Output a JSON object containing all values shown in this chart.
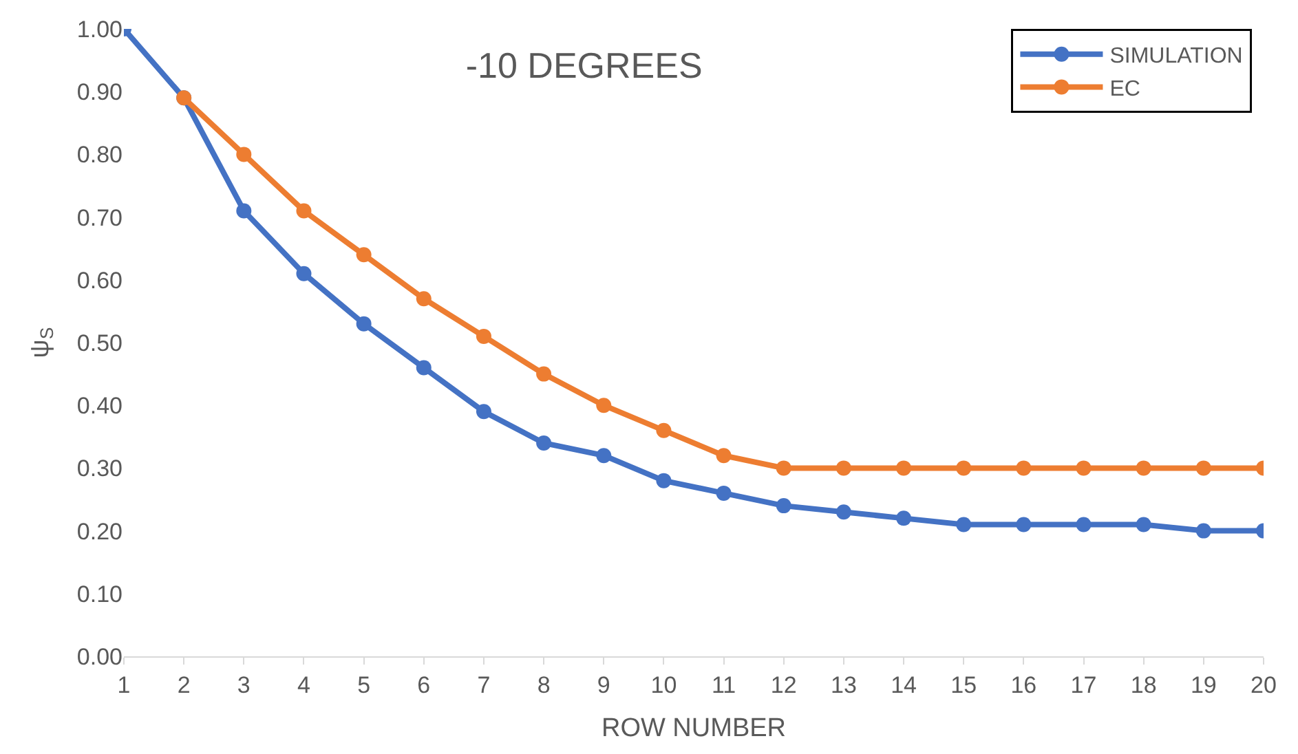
{
  "chart_data": {
    "type": "line",
    "title": "-10 DEGREES",
    "xlabel": "ROW NUMBER",
    "ylabel": "ψ$_{S}$",
    "x": [
      1,
      2,
      3,
      4,
      5,
      6,
      7,
      8,
      9,
      10,
      11,
      12,
      13,
      14,
      15,
      16,
      17,
      18,
      19,
      20
    ],
    "series": [
      {
        "name": "SIMULATION",
        "color": "#4472c4",
        "values": [
          1.0,
          0.89,
          0.71,
          0.61,
          0.53,
          0.46,
          0.39,
          0.34,
          0.32,
          0.28,
          0.26,
          0.24,
          0.23,
          0.22,
          0.21,
          0.21,
          0.21,
          0.21,
          0.2,
          0.2
        ]
      },
      {
        "name": "EC",
        "color": "#ed7d31",
        "values": [
          null,
          0.89,
          0.8,
          0.71,
          0.64,
          0.57,
          0.51,
          0.45,
          0.4,
          0.36,
          0.32,
          0.3,
          0.3,
          0.3,
          0.3,
          0.3,
          0.3,
          0.3,
          0.3,
          0.3
        ]
      }
    ],
    "xlim": [
      1,
      20
    ],
    "xticks": [
      1,
      2,
      3,
      4,
      5,
      6,
      7,
      8,
      9,
      10,
      11,
      12,
      13,
      14,
      15,
      16,
      17,
      18,
      19,
      20
    ],
    "ylim": [
      0,
      1
    ],
    "yticks": [
      {
        "value": 0,
        "label": "0.00"
      },
      {
        "value": 0.1,
        "label": "0.10"
      },
      {
        "value": 0.2,
        "label": "0.20"
      },
      {
        "value": 0.3,
        "label": "0.30"
      },
      {
        "value": 0.4,
        "label": "0.40"
      },
      {
        "value": 0.5,
        "label": "0.50"
      },
      {
        "value": 0.6,
        "label": "0.60"
      },
      {
        "value": 0.7,
        "label": "0.70"
      },
      {
        "value": 0.8,
        "label": "0.80"
      },
      {
        "value": 0.9,
        "label": "0.90"
      },
      {
        "value": 1.0,
        "label": "1.00"
      }
    ],
    "legend": "top right",
    "marker": "circle",
    "line_style": "solid"
  }
}
